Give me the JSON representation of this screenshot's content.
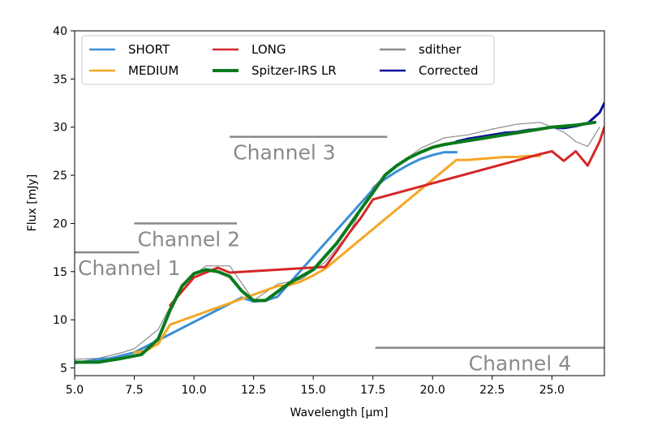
{
  "chart_data": {
    "type": "line",
    "title": "",
    "xlabel": "Wavelength [μm]",
    "ylabel": "Flux [mJy]",
    "xlim": [
      5.0,
      27.2
    ],
    "ylim": [
      4.2,
      40
    ],
    "xticks": [
      5.0,
      7.5,
      10.0,
      12.5,
      15.0,
      17.5,
      20.0,
      22.5,
      25.0
    ],
    "xtick_labels": [
      "5.0",
      "7.5",
      "10.0",
      "12.5",
      "15.0",
      "17.5",
      "20.0",
      "22.5",
      "25.0"
    ],
    "yticks": [
      5,
      10,
      15,
      20,
      25,
      30,
      35,
      40
    ],
    "ytick_labels": [
      "5",
      "10",
      "15",
      "20",
      "25",
      "30",
      "35",
      "40"
    ],
    "legend_position": "top",
    "series": [
      {
        "name": "SHORT",
        "color": "#3a8fd6",
        "x": [
          5.0,
          5.5,
          6.0,
          6.5,
          7.0,
          7.5,
          12.0,
          12.5,
          13.0,
          13.5,
          17.6,
          18.0,
          18.5,
          19.0,
          19.5,
          20.0,
          20.5,
          21.0
        ],
        "y": [
          5.5,
          5.7,
          5.9,
          6.0,
          6.3,
          6.6,
          12.3,
          11.9,
          12.0,
          12.4,
          23.8,
          24.6,
          25.4,
          26.1,
          26.7,
          27.1,
          27.4,
          27.4
        ]
      },
      {
        "name": "MEDIUM",
        "color": "#f5a623",
        "x": [
          7.5,
          8.0,
          8.5,
          9.0,
          13.5,
          14.0,
          14.5,
          15.0,
          15.5,
          21.0,
          21.5,
          22.0,
          22.5,
          23.0,
          23.5,
          24.0,
          24.5
        ],
        "y": [
          6.6,
          6.8,
          7.5,
          9.5,
          13.5,
          13.6,
          14.0,
          14.6,
          15.3,
          26.6,
          26.6,
          26.7,
          26.8,
          26.9,
          26.9,
          27.0,
          27.0
        ]
      },
      {
        "name": "LONG",
        "color": "#d62728",
        "x": [
          9.0,
          10.0,
          11.0,
          11.5,
          15.5,
          16.0,
          16.5,
          17.0,
          17.5,
          24.5,
          25.0,
          25.5,
          26.0,
          26.5,
          27.0,
          27.2
        ],
        "y": [
          11.5,
          14.4,
          15.4,
          14.9,
          15.5,
          17.2,
          19.0,
          20.6,
          22.5,
          27.2,
          27.5,
          26.5,
          27.5,
          26.0,
          28.5,
          30.0
        ]
      },
      {
        "name": "Spitzer-IRS LR",
        "color": "#0a7a1c",
        "x": [
          5.0,
          6.0,
          7.0,
          7.8,
          8.5,
          9.0,
          9.5,
          10.0,
          10.5,
          11.0,
          11.5,
          12.0,
          12.5,
          13.0,
          14.0,
          15.0,
          16.0,
          17.0,
          17.5,
          18.0,
          18.5,
          19.0,
          19.5,
          20.0,
          20.5,
          21.0,
          22.0,
          23.0,
          24.0,
          25.0,
          26.0,
          26.8
        ],
        "y": [
          5.6,
          5.6,
          6.0,
          6.4,
          8.0,
          11.0,
          13.5,
          14.8,
          15.2,
          15.0,
          14.5,
          13.0,
          12.0,
          12.0,
          13.8,
          15.2,
          18.0,
          21.5,
          23.2,
          25.0,
          26.0,
          26.8,
          27.4,
          27.9,
          28.2,
          28.4,
          28.8,
          29.2,
          29.6,
          30.0,
          30.2,
          30.5
        ]
      },
      {
        "name": "sdither",
        "color": "#8c8c8c",
        "x": [
          5.0,
          6.0,
          7.0,
          7.5,
          8.5,
          9.5,
          10.5,
          11.5,
          12.5,
          13.5,
          14.5,
          15.5,
          16.5,
          17.5,
          18.5,
          19.5,
          20.5,
          21.5,
          22.5,
          23.5,
          24.5,
          25.0,
          25.5,
          26.0,
          26.5,
          27.0
        ],
        "y": [
          5.9,
          6.0,
          6.6,
          7.0,
          9.0,
          13.7,
          15.6,
          15.6,
          12.0,
          13.7,
          14.2,
          16.0,
          19.0,
          23.8,
          26.0,
          27.8,
          28.9,
          29.2,
          29.8,
          30.3,
          30.5,
          30.0,
          29.5,
          28.5,
          28.0,
          30.0
        ]
      },
      {
        "name": "Corrected",
        "color": "#0a0f9c",
        "x": [
          21.0,
          21.5,
          22.0,
          22.5,
          23.0,
          23.5,
          24.0,
          24.5,
          25.0,
          25.5,
          26.0,
          26.5,
          27.0,
          27.2
        ],
        "y": [
          28.5,
          28.8,
          29.0,
          29.2,
          29.4,
          29.5,
          29.7,
          29.8,
          30.0,
          29.9,
          30.1,
          30.4,
          31.5,
          32.5
        ]
      }
    ],
    "annotations": [
      {
        "label": "Channel 1",
        "line_x": [
          5.0,
          7.7
        ],
        "line_y": 17.0
      },
      {
        "label": "Channel 2",
        "line_x": [
          7.5,
          11.8
        ],
        "line_y": 20.0
      },
      {
        "label": "Channel 3",
        "line_x": [
          11.5,
          18.1
        ],
        "line_y": 29.0
      },
      {
        "label": "Channel 4",
        "line_x": [
          17.6,
          27.2
        ],
        "line_y": 7.1
      }
    ]
  }
}
